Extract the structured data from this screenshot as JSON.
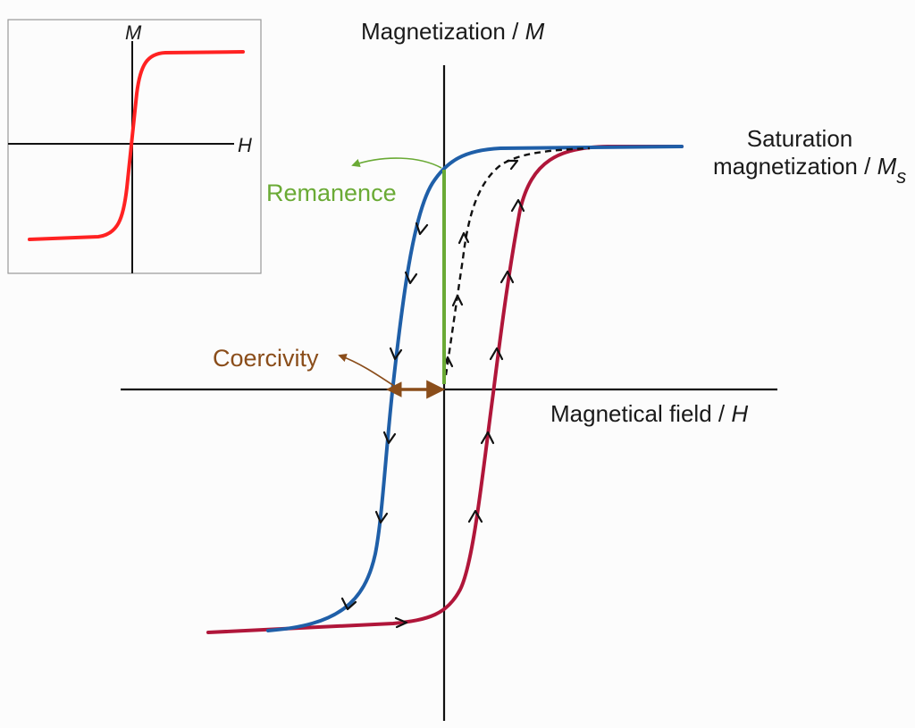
{
  "labels": {
    "y_axis_text": "Magnetization / ",
    "y_axis_symbol": "M",
    "x_axis_text": "Magnetical field / ",
    "x_axis_symbol": "H",
    "saturation_line1": "Saturation",
    "saturation_line2": "magnetization / ",
    "saturation_symbol": "M",
    "saturation_subscript": "s",
    "remanence": "Remanence",
    "coercivity": "Coercivity"
  },
  "inset": {
    "y_label": "M",
    "x_label": "H"
  },
  "colors": {
    "descending_branch": "#1f5fa8",
    "ascending_branch": "#b0163a",
    "initial_curve": "#111111",
    "remanence": "#6aaa35",
    "coercivity": "#8a4d1a",
    "inset_curve": "#ff2222",
    "axes": "#111111"
  }
}
